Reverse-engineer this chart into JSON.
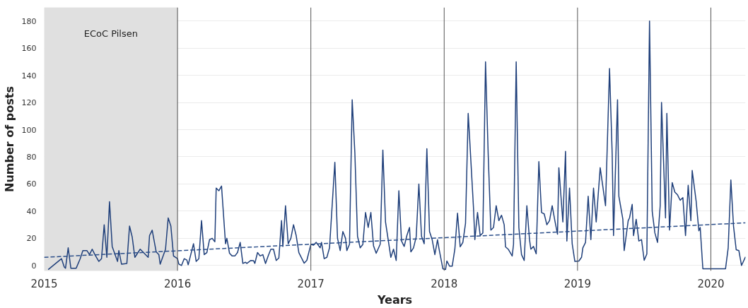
{
  "chart_data": {
    "type": "line",
    "xlabel": "Years",
    "ylabel": "Number of posts",
    "xlim": [
      2015,
      2020.26
    ],
    "xticks": [
      2015,
      2016,
      2017,
      2018,
      2019,
      2020
    ],
    "ylim": [
      -4,
      190
    ],
    "yticks": [
      0,
      20,
      40,
      60,
      80,
      100,
      120,
      140,
      160,
      180
    ],
    "grid": "y",
    "line_style": "solid",
    "bands": [
      {
        "axis": "x",
        "from": 2015,
        "to": 2016,
        "label": "ECoC Pilsen",
        "color": "#e0e0e0"
      }
    ],
    "ref_lines": [
      {
        "axis": "x",
        "value": 2016,
        "color": "#555555"
      },
      {
        "axis": "x",
        "value": 2017,
        "color": "#555555"
      },
      {
        "axis": "x",
        "value": 2018,
        "color": "#555555"
      },
      {
        "axis": "x",
        "value": 2019,
        "color": "#555555"
      },
      {
        "axis": "x",
        "value": 2020,
        "color": "#555555"
      }
    ],
    "series": [
      {
        "color": "#1f3f7a",
        "x": [
          2015.03,
          2015.13,
          2015.15,
          2015.16,
          2015.18,
          2015.2,
          2015.24,
          2015.27,
          2015.29,
          2015.32,
          2015.34,
          2015.36,
          2015.38,
          2015.41,
          2015.43,
          2015.45,
          2015.47,
          2015.49,
          2015.51,
          2015.55,
          2015.56,
          2015.58,
          2015.62,
          2015.64,
          2015.66,
          2015.68,
          2015.72,
          2015.75,
          2015.78,
          2015.79,
          2015.81,
          2015.84,
          2015.86,
          2015.87,
          2015.91,
          2015.93,
          2015.95,
          2015.97,
          2016.0,
          2016.01,
          2016.03,
          2016.05,
          2016.07,
          2016.08,
          2016.12,
          2016.14,
          2016.16,
          2016.18,
          2016.2,
          2016.22,
          2016.24,
          2016.26,
          2016.28,
          2016.29,
          2016.31,
          2016.33,
          2016.36,
          2016.37,
          2016.39,
          2016.41,
          2016.43,
          2016.45,
          2016.47,
          2016.49,
          2016.51,
          2016.52,
          2016.55,
          2016.57,
          2016.58,
          2016.6,
          2016.62,
          2016.64,
          2016.66,
          2016.68,
          2016.7,
          2016.72,
          2016.74,
          2016.76,
          2016.78,
          2016.79,
          2016.81,
          2016.83,
          2016.85,
          2016.87,
          2016.89,
          2016.91,
          2016.95,
          2016.97,
          2017.0,
          2017.02,
          2017.04,
          2017.07,
          2017.08,
          2017.1,
          2017.12,
          2017.14,
          2017.18,
          2017.2,
          2017.22,
          2017.24,
          2017.26,
          2017.27,
          2017.29,
          2017.31,
          2017.33,
          2017.35,
          2017.37,
          2017.39,
          2017.41,
          2017.43,
          2017.45,
          2017.47,
          2017.49,
          2017.52,
          2017.54,
          2017.56,
          2017.6,
          2017.62,
          2017.64,
          2017.66,
          2017.68,
          2017.7,
          2017.72,
          2017.74,
          2017.75,
          2017.77,
          2017.79,
          2017.81,
          2017.83,
          2017.85,
          2017.87,
          2017.89,
          2017.91,
          2017.93,
          2017.95,
          2017.96,
          2017.99,
          2018.01,
          2018.02,
          2018.04,
          2018.06,
          2018.08,
          2018.1,
          2018.12,
          2018.14,
          2018.16,
          2018.18,
          2018.19,
          2018.22,
          2018.23,
          2018.25,
          2018.27,
          2018.29,
          2018.31,
          2018.33,
          2018.35,
          2018.37,
          2018.39,
          2018.41,
          2018.43,
          2018.45,
          2018.46,
          2018.48,
          2018.51,
          2018.52,
          2018.54,
          2018.56,
          2018.58,
          2018.6,
          2018.62,
          2018.64,
          2018.65,
          2018.67,
          2018.69,
          2018.71,
          2018.73,
          2018.75,
          2018.77,
          2018.79,
          2018.81,
          2018.83,
          2018.85,
          2018.86,
          2018.89,
          2018.91,
          2018.92,
          2018.94,
          2018.96,
          2018.98,
          2019.01,
          2019.03,
          2019.04,
          2019.06,
          2019.08,
          2019.1,
          2019.12,
          2019.14,
          2019.17,
          2019.21,
          2019.24,
          2019.26,
          2019.27,
          2019.3,
          2019.31,
          2019.34,
          2019.35,
          2019.38,
          2019.39,
          2019.41,
          2019.42,
          2019.44,
          2019.46,
          2019.48,
          2019.5,
          2019.52,
          2019.54,
          2019.56,
          2019.58,
          2019.6,
          2019.62,
          2019.63,
          2019.66,
          2019.67,
          2019.69,
          2019.71,
          2019.73,
          2019.75,
          2019.77,
          2019.79,
          2019.81,
          2019.83,
          2019.85,
          2019.86,
          2019.89,
          2019.91,
          2019.92,
          2019.94,
          2020.11,
          2020.13,
          2020.15,
          2020.17,
          2020.19,
          2020.21,
          2020.23,
          2020.26
        ],
        "values": [
          -3,
          5,
          -1,
          -2,
          13,
          -2,
          -2,
          5,
          11,
          11,
          8,
          12,
          8,
          3,
          5,
          30,
          6,
          47,
          14,
          3,
          11,
          1,
          1.5,
          29,
          21,
          6,
          12,
          9,
          6,
          22,
          26,
          10,
          8,
          1,
          12,
          35,
          29,
          7,
          5,
          1,
          0,
          5,
          4,
          0.5,
          16,
          3,
          5,
          33,
          8,
          9.5,
          19,
          20,
          17.5,
          57,
          55,
          58.5,
          16,
          20,
          9,
          7,
          7,
          9.5,
          17,
          1.5,
          2.4,
          1.5,
          3.7,
          3.6,
          1.5,
          9.5,
          7,
          8,
          1.5,
          7,
          12,
          12,
          3.7,
          5.5,
          33,
          14,
          44,
          16,
          20,
          30,
          22,
          9.5,
          1.7,
          3.8,
          15.6,
          15,
          17,
          13,
          17,
          5,
          6,
          13,
          76,
          20,
          11,
          25,
          20,
          11,
          15.6,
          122,
          83,
          21.5,
          13,
          15.5,
          39,
          28,
          39,
          14.5,
          9,
          15.6,
          85,
          32,
          6,
          12,
          3.7,
          55,
          18,
          14,
          22,
          28,
          10,
          13,
          21,
          60,
          21.5,
          16,
          86,
          25,
          19,
          8,
          19,
          13,
          -2.4,
          -3,
          3.3,
          -0.5,
          -0.5,
          12,
          38.5,
          13.7,
          17,
          31,
          112,
          95,
          42,
          19,
          39,
          22,
          24,
          150,
          82,
          26,
          28,
          44,
          33,
          37,
          30,
          13.7,
          12,
          7,
          15.5,
          150,
          28,
          8,
          3.7,
          44,
          19,
          12,
          14,
          8.6,
          76.5,
          39,
          38,
          30,
          33,
          44,
          33,
          23,
          72,
          32,
          84,
          18,
          57,
          16,
          3,
          3.3,
          6,
          13,
          17,
          51,
          19,
          57,
          32,
          72,
          44,
          145,
          82,
          22,
          122,
          51,
          34,
          11,
          33,
          35,
          45,
          22,
          34,
          18,
          19,
          3.8,
          8.5,
          180,
          40,
          24,
          17,
          44,
          120,
          35,
          112,
          26,
          61,
          54,
          52,
          48,
          50,
          22,
          59,
          33,
          70,
          47,
          25.5,
          28,
          -2.4,
          -2.4,
          13,
          63,
          29,
          11.6,
          11,
          0,
          6.4
        ]
      },
      {
        "type": "line",
        "color": "#2c4f8a",
        "line_style": "dashed",
        "x": [
          2015,
          2020.26
        ],
        "values": [
          6,
          31.4
        ]
      }
    ]
  }
}
